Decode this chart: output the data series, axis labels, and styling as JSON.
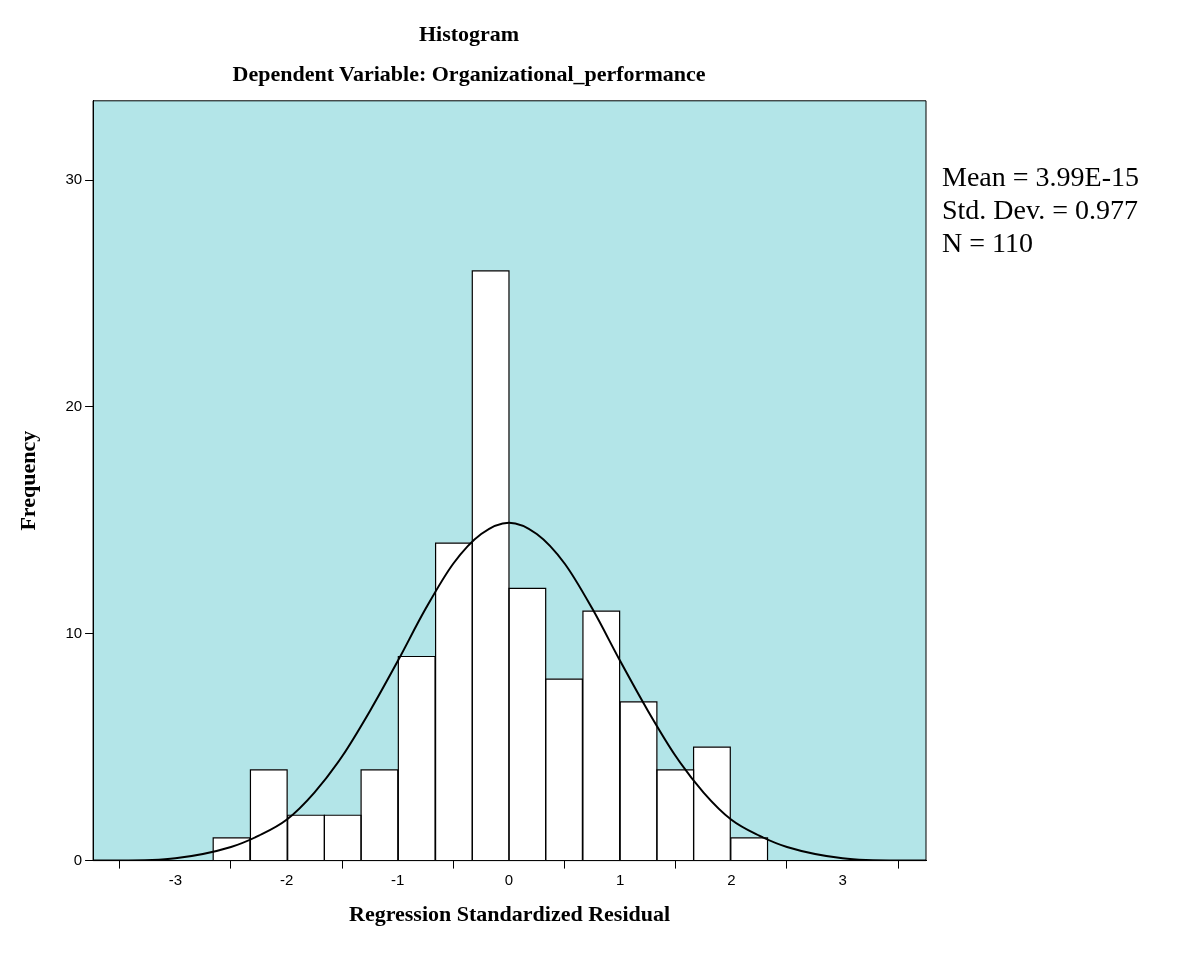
{
  "chart_data": {
    "type": "histogram",
    "title": "Histogram",
    "subtitle": "Dependent Variable: Organizational_performance",
    "xlabel": "Regression Standardized Residual",
    "ylabel": "Frequency",
    "bins": [
      -2.66,
      -2.33,
      -1.99,
      -1.66,
      -1.33,
      -1.0,
      -0.66,
      -0.33,
      0.0,
      0.33,
      0.66,
      1.0,
      1.33,
      1.66,
      1.99,
      2.33
    ],
    "values": [
      1,
      4,
      2,
      2,
      4,
      9,
      14,
      26,
      12,
      8,
      11,
      7,
      4,
      5,
      1
    ],
    "color": "#ffffff",
    "series": [
      {
        "type": "line",
        "color": "#000000",
        "x": [
          -3.74,
          -3.5,
          -3.0,
          -2.5,
          -2.25,
          -2.0,
          -1.75,
          -1.5,
          -1.25,
          -1.0,
          -0.75,
          -0.5,
          -0.25,
          0.0,
          0.25,
          0.5,
          0.75,
          1.0,
          1.25,
          1.5,
          1.75,
          2.0,
          2.25,
          2.5,
          3.0,
          3.5,
          3.75
        ],
        "values": [
          0.0,
          0.0,
          0.1,
          0.6,
          1.1,
          1.8,
          3.0,
          4.6,
          6.6,
          8.8,
          11.1,
          13.1,
          14.4,
          14.9,
          14.4,
          13.1,
          11.1,
          8.8,
          6.6,
          4.6,
          3.0,
          1.8,
          1.1,
          0.6,
          0.1,
          0.0,
          0.0
        ]
      }
    ],
    "xlim": [
      -3.74,
      3.75
    ],
    "xticks": [
      -3,
      -2,
      -1,
      0,
      1,
      2,
      3
    ],
    "ylim": [
      0,
      33.5
    ],
    "yticks": [
      0,
      10,
      20,
      30
    ],
    "grid": false,
    "legend": false,
    "marker": "none",
    "line_style": "solid",
    "annotations": [
      "Mean = 3.99E-15",
      "Std. Dev. = 0.977",
      "N = 110"
    ]
  }
}
